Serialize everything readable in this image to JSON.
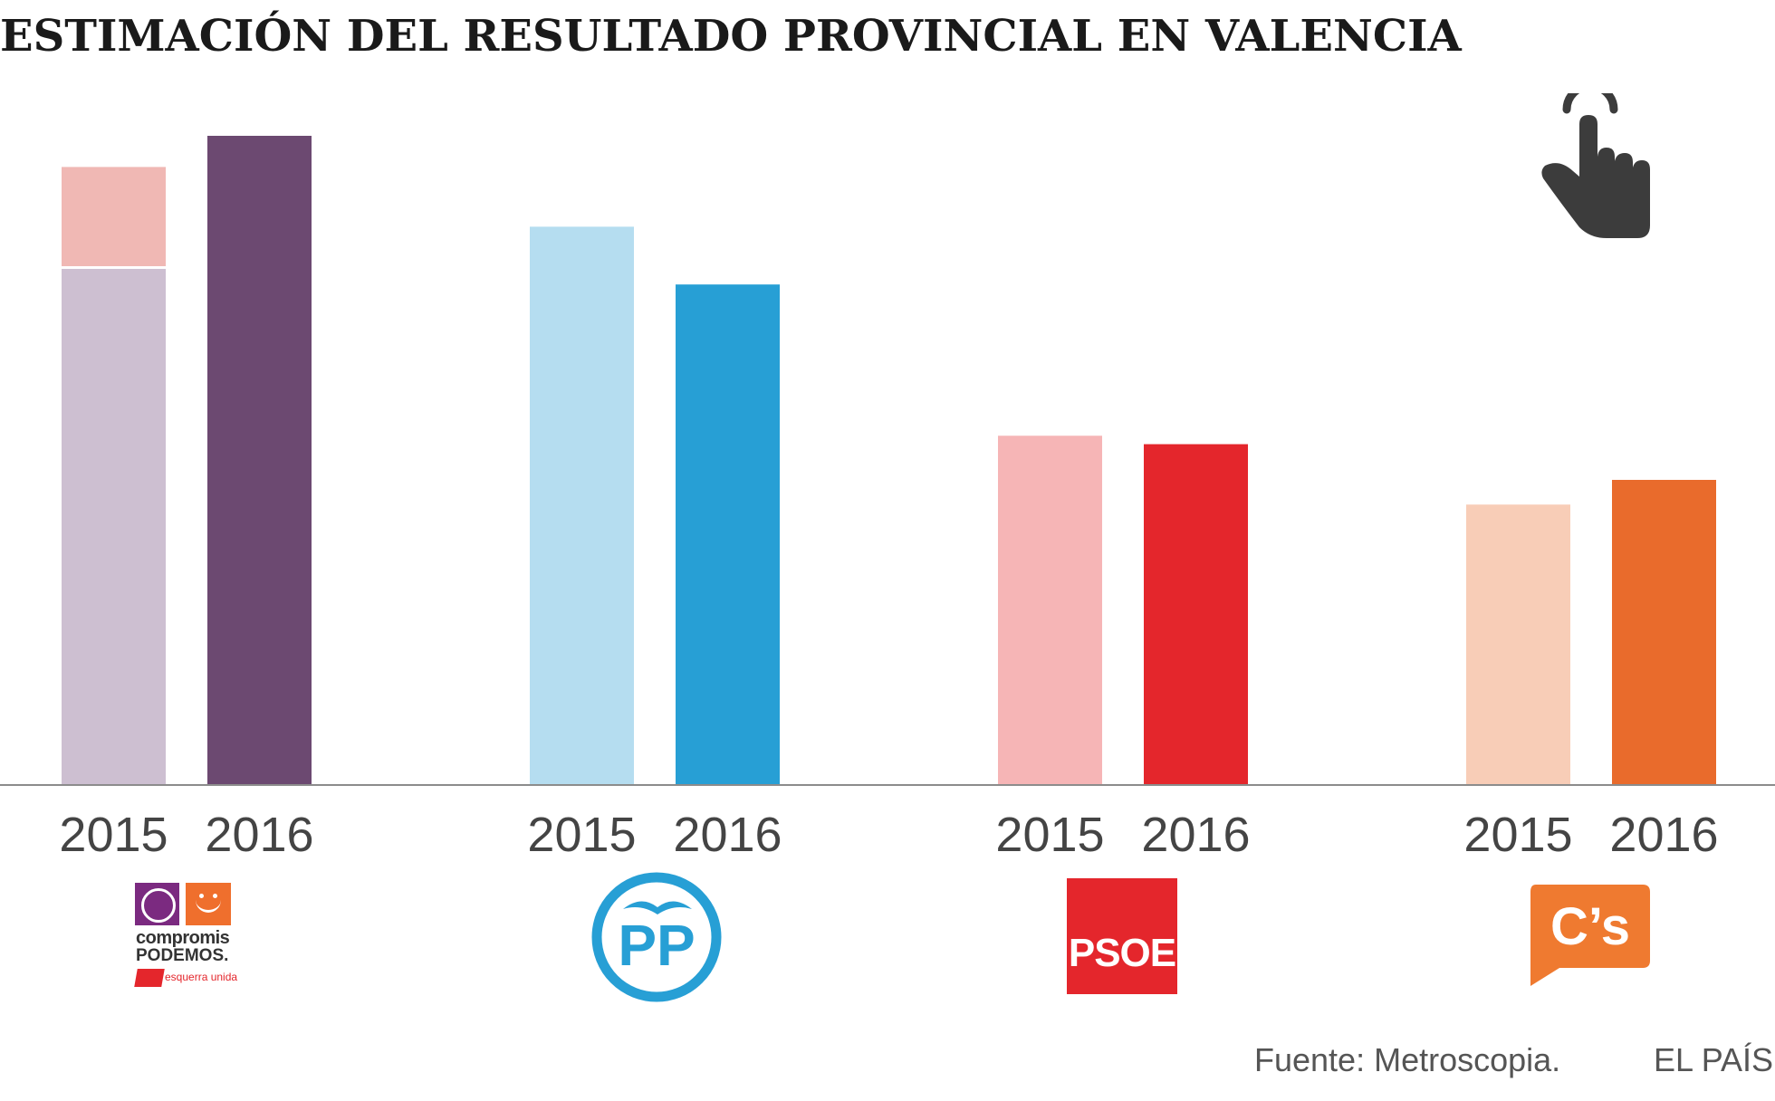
{
  "title": "ESTIMACIÓN DEL RESULTADO PROVINCIAL EN VALENCIA",
  "source": "Fuente: Metroscopia.",
  "brand": "EL PAÍS",
  "colors": {
    "unidos_2015": "#cdbfd1",
    "unidos_2015_iu": "#f0b8b4",
    "unidos_2016": "#6c4971",
    "pp_2015": "#b5ddf0",
    "pp_2016": "#279fd5",
    "psoe_2015": "#f6b5b6",
    "psoe_2016": "#e4262c",
    "cs_2015": "#f8cdb7",
    "cs_2016": "#e96b2c"
  },
  "icons": {
    "pointer": "hand-pointer-icon"
  },
  "logos": {
    "unidos": {
      "line1": "compromis",
      "line2": "PODEMOS.",
      "line3": "esquerra unida"
    },
    "pp": {
      "text": "PP"
    },
    "psoe": {
      "text": "PSOE"
    },
    "cs": {
      "text": "C’s"
    }
  },
  "chart_data": {
    "type": "bar",
    "categories": [
      "Compromís-Podemos-EU",
      "PP",
      "PSOE",
      "C's"
    ],
    "x_labels": [
      "2015",
      "2016"
    ],
    "ylim": [
      0,
      1
    ],
    "grid": false,
    "series": [
      {
        "values": [
          0.952,
          0.86,
          0.538,
          0.432
        ],
        "stack_base": [
          0.795,
          null,
          null,
          null
        ]
      },
      {
        "values": [
          1.0,
          0.771,
          0.525,
          0.47
        ]
      }
    ]
  }
}
